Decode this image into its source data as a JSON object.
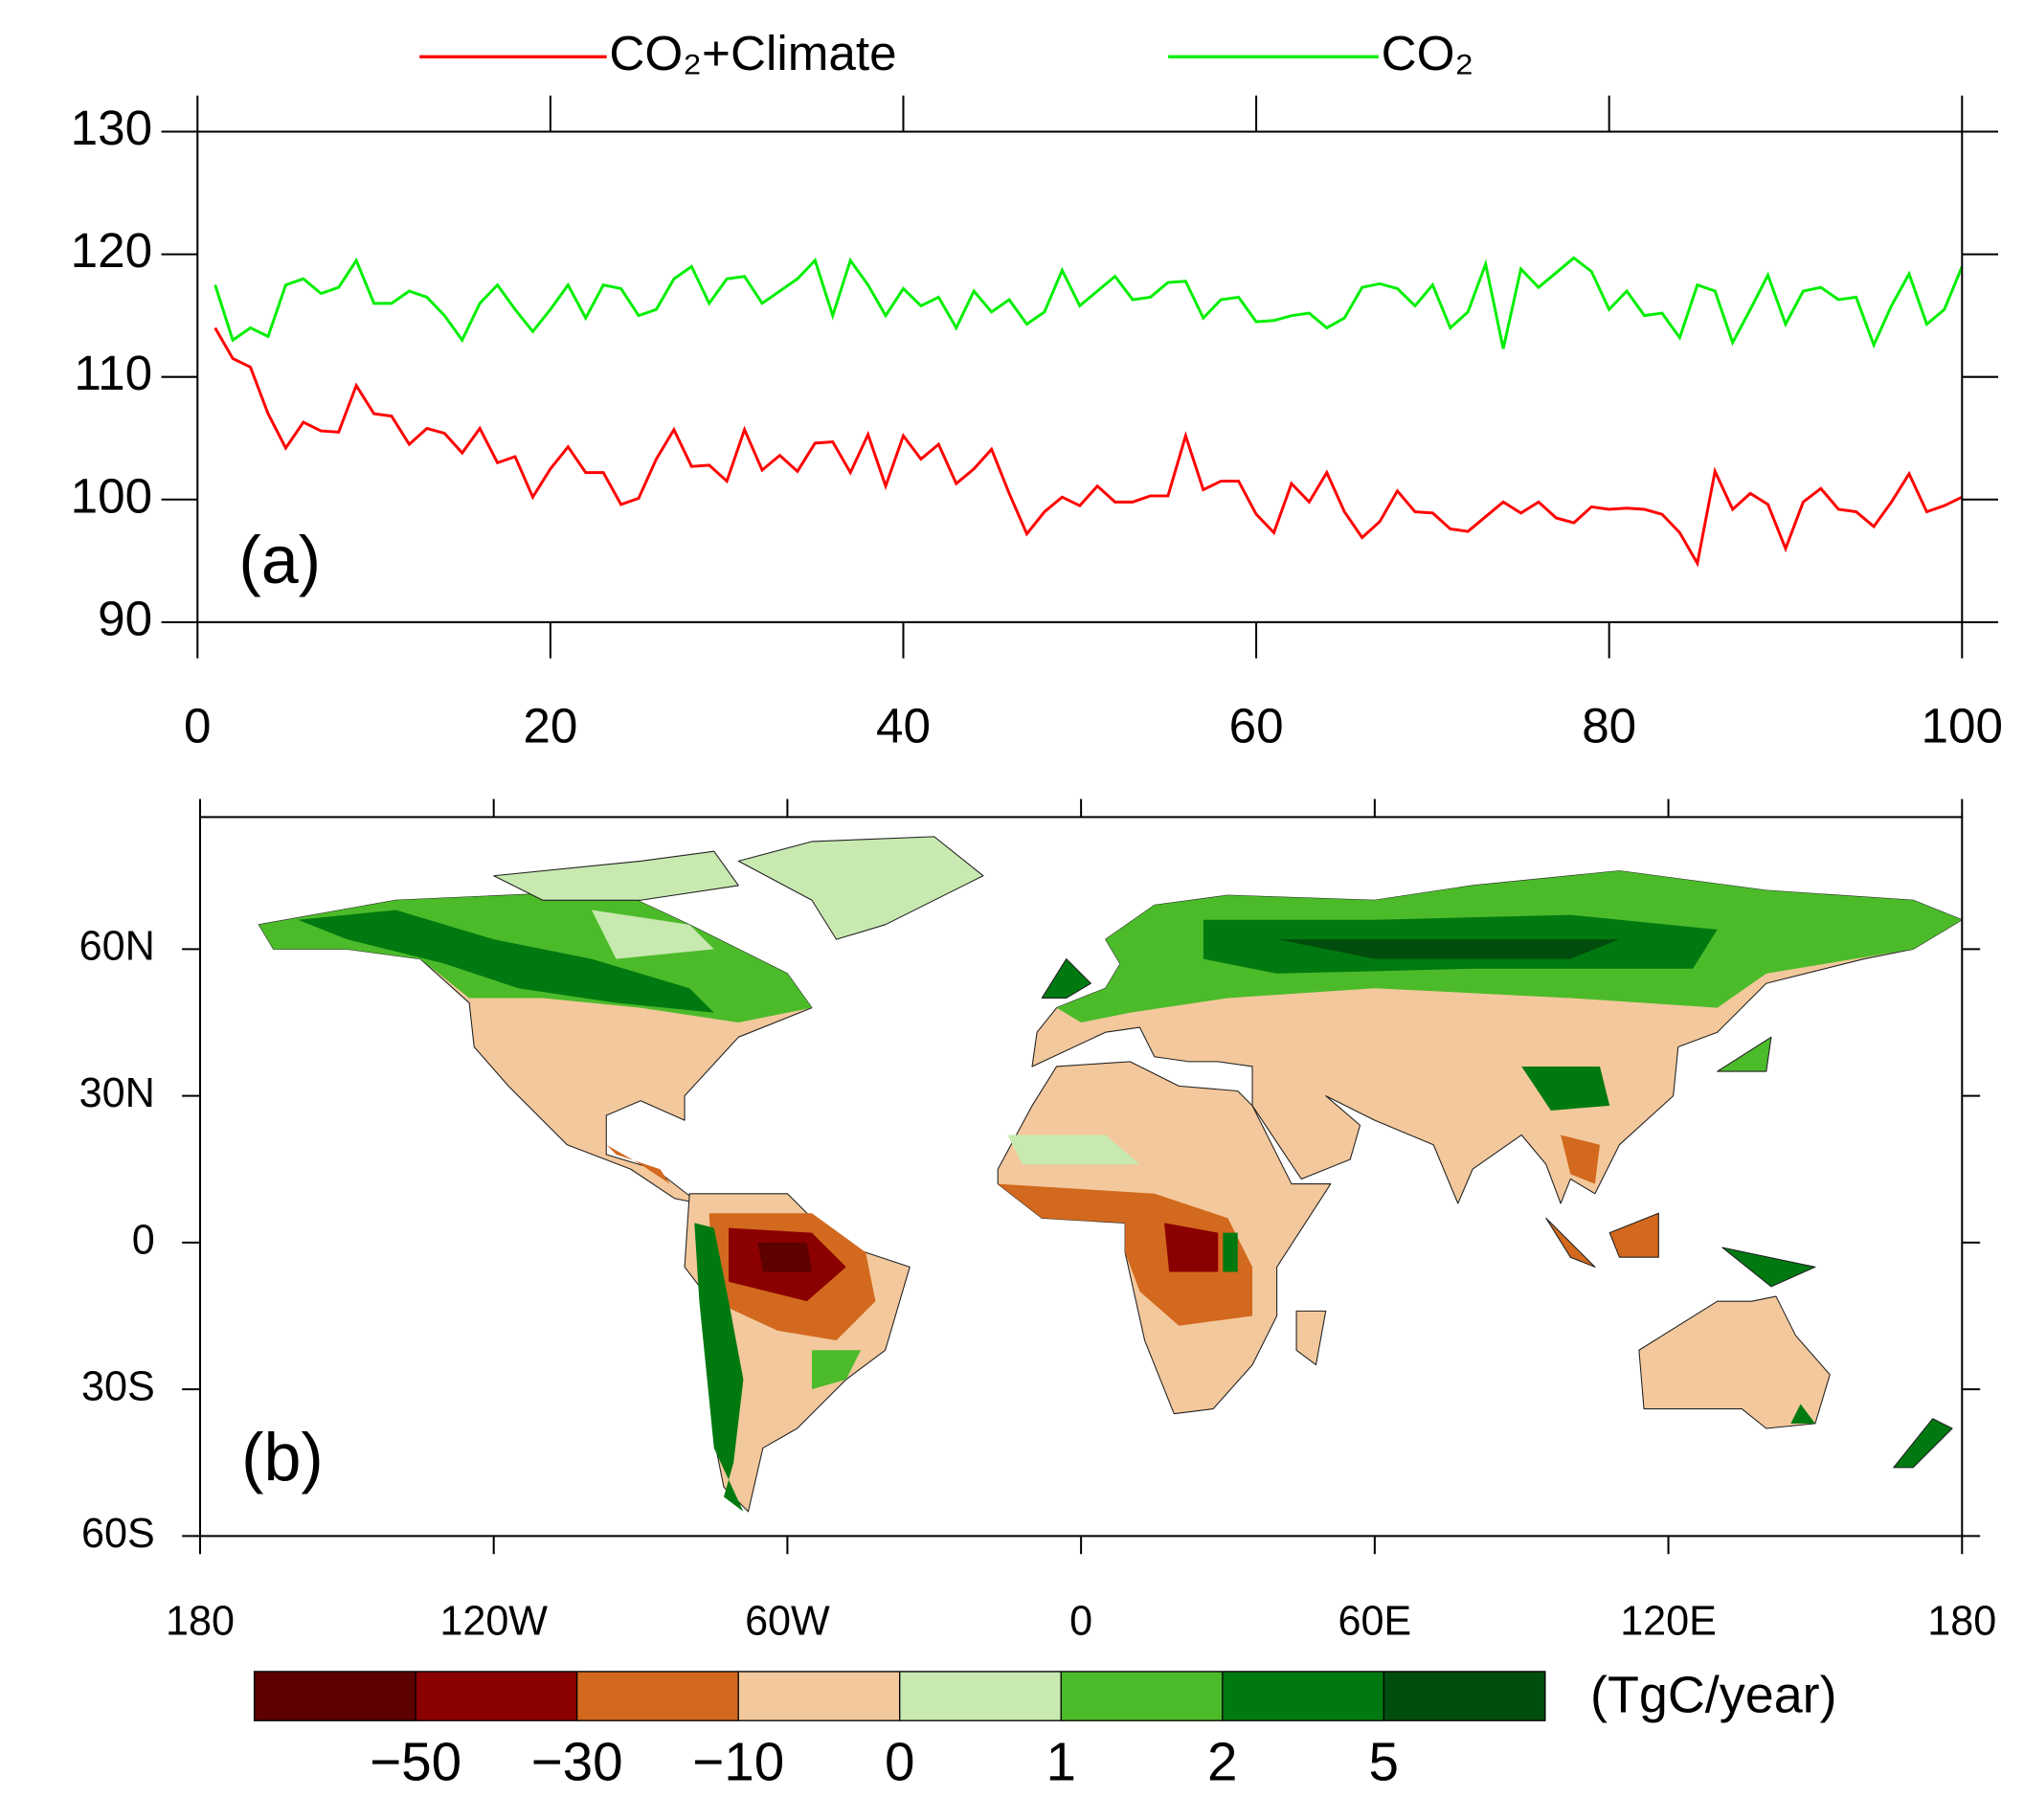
{
  "chart_data": [
    {
      "type": "line",
      "annotation": "(a)",
      "x": [
        1,
        2,
        3,
        4,
        5,
        6,
        7,
        8,
        9,
        10,
        11,
        12,
        13,
        14,
        15,
        16,
        17,
        18,
        19,
        20,
        21,
        22,
        23,
        24,
        25,
        26,
        27,
        28,
        29,
        30,
        31,
        32,
        33,
        34,
        35,
        36,
        37,
        38,
        39,
        40,
        41,
        42,
        43,
        44,
        45,
        46,
        47,
        48,
        49,
        50,
        51,
        52,
        53,
        54,
        55,
        56,
        57,
        58,
        59,
        60,
        61,
        62,
        63,
        64,
        65,
        66,
        67,
        68,
        69,
        70,
        71,
        72,
        73,
        74,
        75,
        76,
        77,
        78,
        79,
        80,
        81,
        82,
        83,
        84,
        85,
        86,
        87,
        88,
        89,
        90,
        91,
        92,
        93,
        94,
        95,
        96,
        97,
        98,
        99,
        100
      ],
      "series": [
        {
          "name": "CO₂+Climate",
          "color": "#ff0000",
          "values": [
            114,
            111.5,
            110.8,
            107,
            104.2,
            106.3,
            105.6,
            105.5,
            109.3,
            107,
            106.8,
            104.5,
            105.8,
            105.4,
            103.8,
            105.8,
            103,
            103.5,
            100.2,
            102.5,
            104.3,
            102.2,
            102.2,
            99.6,
            100.1,
            103.3,
            105.7,
            102.7,
            102.8,
            101.5,
            105.7,
            102.4,
            103.6,
            102.3,
            104.6,
            104.7,
            102.2,
            105.3,
            101.1,
            105.2,
            103.3,
            104.5,
            101.3,
            102.5,
            104.1,
            100.5,
            97.2,
            99,
            100.2,
            99.5,
            101.1,
            99.8,
            99.8,
            100.3,
            100.3,
            105.2,
            100.8,
            101.5,
            101.5,
            98.8,
            97.3,
            101.3,
            99.8,
            102.2,
            99,
            96.9,
            98.2,
            100.7,
            99,
            98.9,
            97.6,
            97.4,
            98.6,
            99.8,
            98.9,
            99.8,
            98.5,
            98.1,
            99.4,
            99.2,
            99.3,
            99.2,
            98.8,
            97.3,
            94.8,
            102.3,
            99.2,
            100.5,
            99.6,
            96,
            99.8,
            100.9,
            99.2,
            99,
            97.8,
            99.8,
            102.1,
            99,
            99.5,
            100.2
          ]
        },
        {
          "name": "CO₂",
          "color": "#00ee00",
          "values": [
            117.5,
            113,
            114,
            113.3,
            117.5,
            118,
            116.8,
            117.3,
            119.5,
            116,
            116,
            117,
            116.5,
            115,
            113,
            116,
            117.5,
            115.5,
            113.7,
            115.5,
            117.5,
            114.8,
            117.5,
            117.2,
            115,
            115.5,
            118,
            119,
            116,
            118,
            118.2,
            116,
            117,
            118,
            119.5,
            115,
            119.5,
            117.5,
            115,
            117.2,
            115.8,
            116.5,
            114,
            117,
            115.3,
            116.3,
            114.3,
            115.3,
            118.7,
            115.8,
            117,
            118.2,
            116.3,
            116.5,
            117.7,
            117.8,
            114.8,
            116.3,
            116.5,
            114.5,
            114.6,
            115,
            115.2,
            114,
            114.8,
            117.3,
            117.6,
            117.2,
            115.8,
            117.5,
            114,
            115.3,
            119.2,
            112.3,
            118.8,
            117.3,
            118.5,
            119.7,
            118.6,
            115.5,
            117,
            115,
            115.2,
            113.2,
            117.5,
            117,
            112.8,
            115.5,
            118.3,
            114.3,
            117,
            117.3,
            116.3,
            116.5,
            112.6,
            115.8,
            118.4,
            114.3,
            115.5,
            119
          ]
        }
      ],
      "xlim": [
        0,
        100
      ],
      "xticks": [
        0,
        20,
        40,
        60,
        80,
        100
      ],
      "ylim": [
        90,
        130
      ],
      "yticks": [
        90,
        100,
        110,
        120,
        130
      ],
      "legend": "top"
    },
    {
      "type": "map",
      "annotation": "(b)",
      "xlim": [
        -180,
        180
      ],
      "xticks": [
        {
          "value": -180,
          "label": "180"
        },
        {
          "value": -120,
          "label": "120W"
        },
        {
          "value": -60,
          "label": "60W"
        },
        0,
        {
          "value": 60,
          "label": "60E"
        },
        {
          "value": 120,
          "label": "120E"
        },
        {
          "value": 180,
          "label": "180"
        }
      ],
      "ylim": [
        -60,
        87
      ],
      "yticks": [
        {
          "value": -60,
          "label": "60S"
        },
        {
          "value": -30,
          "label": "30S"
        },
        0,
        {
          "value": 30,
          "label": "30N"
        },
        {
          "value": 60,
          "label": "60N"
        }
      ],
      "colorbar": {
        "label": "(TgC/year)",
        "levels": [
          {
            "value": -50,
            "label": "−50"
          },
          {
            "value": -30,
            "label": "−30"
          },
          {
            "value": -10,
            "label": "−10"
          },
          0,
          1,
          2,
          5
        ],
        "colors": [
          "#5c0000",
          "#8b0000",
          "#d2691e",
          "#f3c89c",
          "#c8e9b0",
          "#4cbb2a",
          "#007a10",
          "#004d0d"
        ]
      }
    }
  ]
}
